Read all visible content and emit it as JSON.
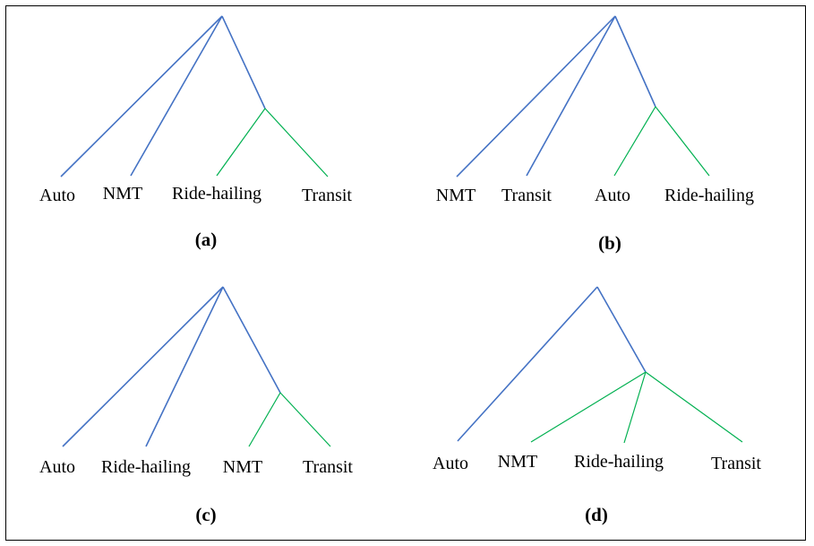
{
  "colors": {
    "upper_branch": "#4472c4",
    "nest_branch": "#00b050",
    "text": "#000000",
    "border": "#000000"
  },
  "diagrams": [
    {
      "id": "a",
      "caption": "(a)",
      "leaves": [
        "Auto",
        "NMT",
        "Ride-hailing",
        "Transit"
      ],
      "nest": [
        "Ride-hailing",
        "Transit"
      ]
    },
    {
      "id": "b",
      "caption": "(b)",
      "leaves": [
        "NMT",
        "Transit",
        "Auto",
        "Ride-hailing"
      ],
      "nest": [
        "Auto",
        "Ride-hailing"
      ]
    },
    {
      "id": "c",
      "caption": "(c)",
      "leaves": [
        "Auto",
        "Ride-hailing",
        "NMT",
        "Transit"
      ],
      "nest": [
        "NMT",
        "Transit"
      ]
    },
    {
      "id": "d",
      "caption": "(d)",
      "leaves": [
        "Auto",
        "NMT",
        "Ride-hailing",
        "Transit"
      ],
      "nest": [
        "NMT",
        "Ride-hailing",
        "Transit"
      ]
    }
  ]
}
